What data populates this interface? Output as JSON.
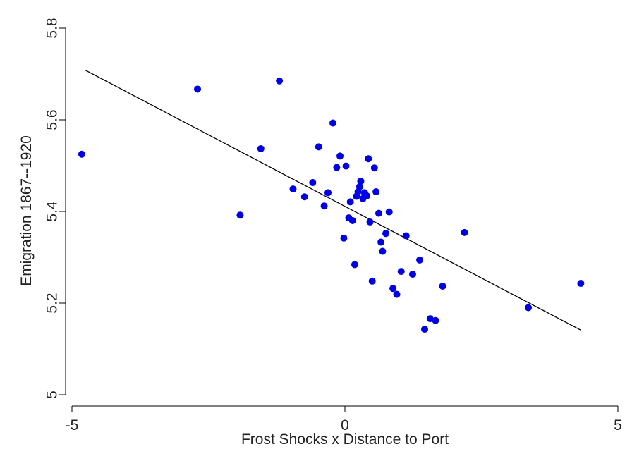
{
  "chart_data": {
    "type": "scatter",
    "title": "",
    "xlabel": "Frost Shocks x Distance to Port",
    "ylabel": "Emigration 1867--1920",
    "xlim": [
      -5,
      5
    ],
    "ylim": [
      5.0,
      5.8
    ],
    "xticks": [
      -5,
      0,
      5
    ],
    "xtick_labels": [
      "-5",
      "0",
      "5"
    ],
    "yticks": [
      5.0,
      5.2,
      5.4,
      5.6,
      5.8
    ],
    "ytick_labels": [
      "5",
      "5.2",
      "5.4",
      "5.6",
      "5.8"
    ],
    "grid": false,
    "point_color": "#0000e6",
    "line_color": "#000000",
    "points": [
      {
        "x": -4.82,
        "y": 5.525
      },
      {
        "x": -2.7,
        "y": 5.667
      },
      {
        "x": -1.92,
        "y": 5.392
      },
      {
        "x": -1.54,
        "y": 5.537
      },
      {
        "x": -1.2,
        "y": 5.685
      },
      {
        "x": -0.95,
        "y": 5.449
      },
      {
        "x": -0.74,
        "y": 5.432
      },
      {
        "x": -0.59,
        "y": 5.463
      },
      {
        "x": -0.48,
        "y": 5.541
      },
      {
        "x": -0.38,
        "y": 5.412
      },
      {
        "x": -0.31,
        "y": 5.441
      },
      {
        "x": -0.22,
        "y": 5.593
      },
      {
        "x": -0.15,
        "y": 5.496
      },
      {
        "x": -0.09,
        "y": 5.521
      },
      {
        "x": -0.02,
        "y": 5.342
      },
      {
        "x": 0.02,
        "y": 5.499
      },
      {
        "x": 0.07,
        "y": 5.386
      },
      {
        "x": 0.1,
        "y": 5.421
      },
      {
        "x": 0.14,
        "y": 5.38
      },
      {
        "x": 0.18,
        "y": 5.284
      },
      {
        "x": 0.21,
        "y": 5.433
      },
      {
        "x": 0.24,
        "y": 5.443
      },
      {
        "x": 0.27,
        "y": 5.454
      },
      {
        "x": 0.29,
        "y": 5.466
      },
      {
        "x": 0.33,
        "y": 5.428
      },
      {
        "x": 0.36,
        "y": 5.441
      },
      {
        "x": 0.4,
        "y": 5.434
      },
      {
        "x": 0.43,
        "y": 5.515
      },
      {
        "x": 0.46,
        "y": 5.377
      },
      {
        "x": 0.5,
        "y": 5.248
      },
      {
        "x": 0.54,
        "y": 5.495
      },
      {
        "x": 0.57,
        "y": 5.443
      },
      {
        "x": 0.62,
        "y": 5.396
      },
      {
        "x": 0.66,
        "y": 5.333
      },
      {
        "x": 0.69,
        "y": 5.313
      },
      {
        "x": 0.75,
        "y": 5.352
      },
      {
        "x": 0.81,
        "y": 5.399
      },
      {
        "x": 0.88,
        "y": 5.232
      },
      {
        "x": 0.95,
        "y": 5.219
      },
      {
        "x": 1.03,
        "y": 5.269
      },
      {
        "x": 1.12,
        "y": 5.347
      },
      {
        "x": 1.24,
        "y": 5.263
      },
      {
        "x": 1.37,
        "y": 5.294
      },
      {
        "x": 1.46,
        "y": 5.143
      },
      {
        "x": 1.56,
        "y": 5.166
      },
      {
        "x": 1.66,
        "y": 5.162
      },
      {
        "x": 1.79,
        "y": 5.237
      },
      {
        "x": 2.19,
        "y": 5.354
      },
      {
        "x": 3.36,
        "y": 5.19
      },
      {
        "x": 4.32,
        "y": 5.243
      }
    ],
    "fit_line": {
      "x": [
        -4.75,
        4.32
      ],
      "y": [
        5.708,
        5.141
      ]
    }
  }
}
